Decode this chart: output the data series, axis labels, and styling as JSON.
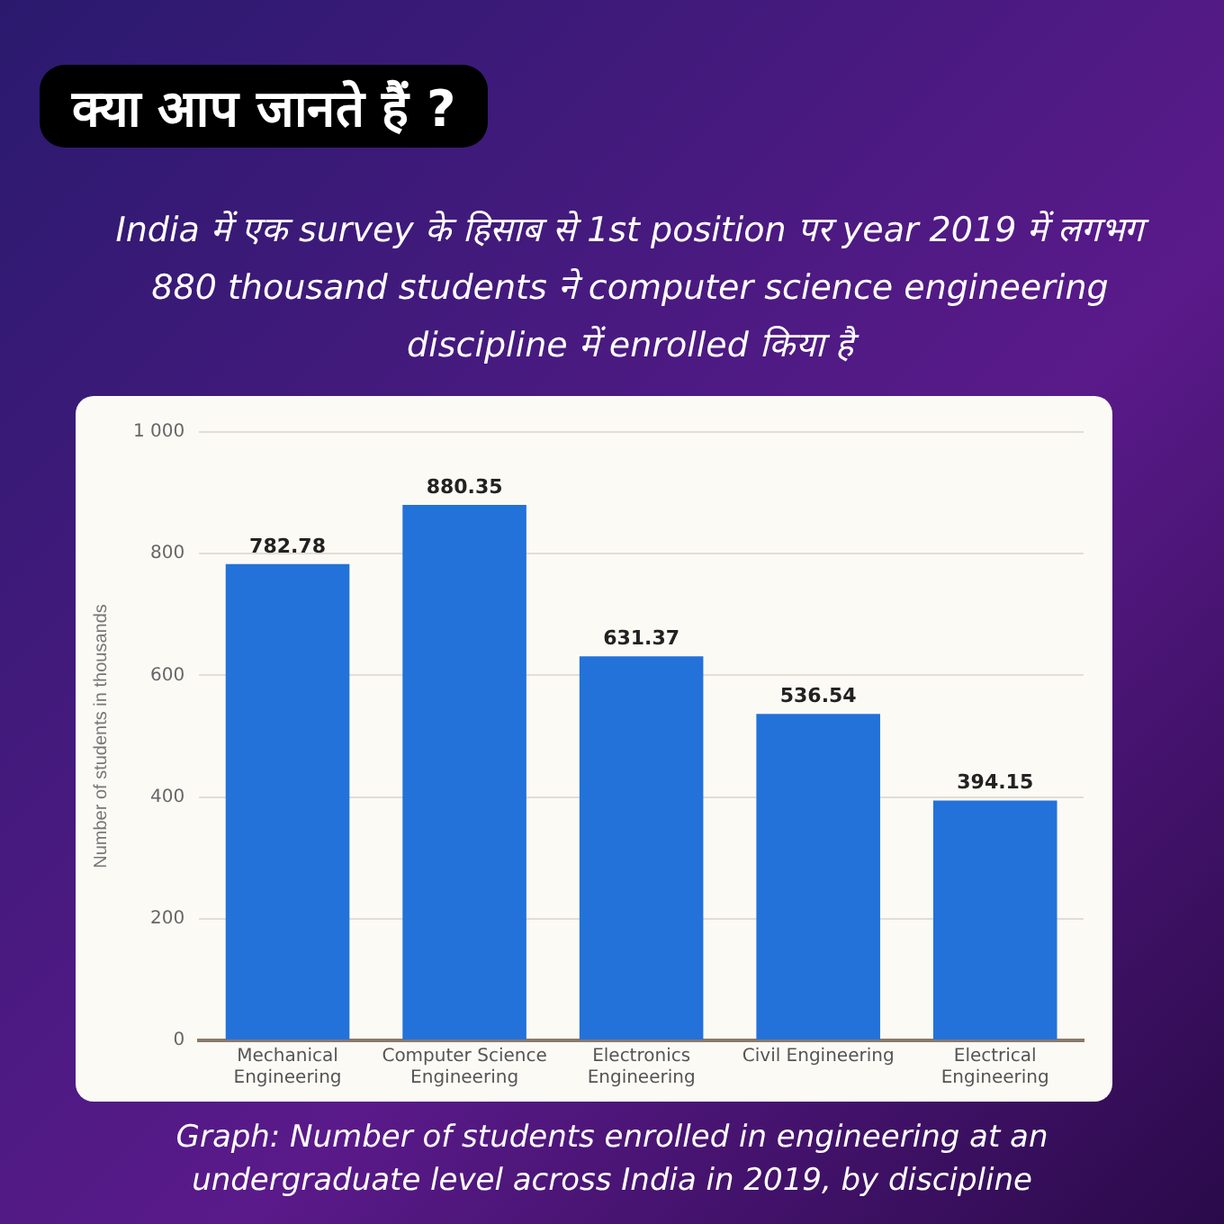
{
  "chart_data": {
    "type": "bar",
    "title": "क्या आप जानते हैं ?",
    "subtitle": "India में एक survey के हिसाब से 1st position पर year 2019 में लगभग 880 thousand students ने computer science engineering discipline में enrolled किया है",
    "ylabel": "Number of students in thousands",
    "categories": [
      "Mechanical Engineering",
      "Computer Science Engineering",
      "Electronics Engineering",
      "Civil Engineering",
      "Electrical Engineering"
    ],
    "values": [
      782.78,
      880.35,
      631.37,
      536.54,
      394.15
    ],
    "color": "#2372d9",
    "ylim": [
      0,
      1000
    ],
    "yticks": [
      0,
      200,
      400,
      600,
      800,
      {
        "value": 1000,
        "label": "1 000"
      }
    ],
    "grid": "y",
    "data_labels": true,
    "annotations": [
      "Graph: Number of students enrolled in engineering at an undergraduate level across India in 2019, by discipline"
    ]
  }
}
